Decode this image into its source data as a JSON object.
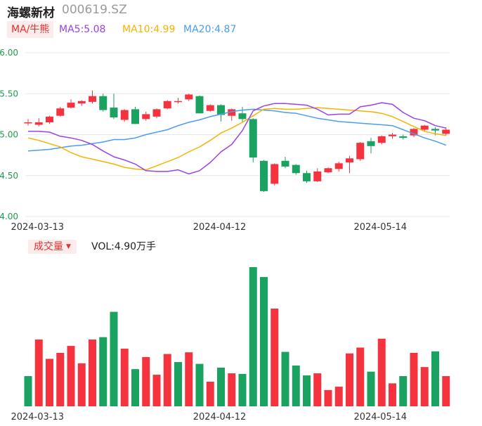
{
  "header": {
    "name": "海螺新材",
    "code": "000619.SZ"
  },
  "ma_legend": {
    "tab_label": "MA/牛熊",
    "ma5": "MA5:5.08",
    "ma10": "MA10:4.99",
    "ma20": "MA20:4.87"
  },
  "volume_legend": {
    "tab_label": "成交量",
    "value": "VOL:4.90万手"
  },
  "colors": {
    "up": "#f5333f",
    "down": "#1aa260",
    "ma5": "#9b41e8",
    "ma10": "#f4b400",
    "ma20": "#4a9df0",
    "grid": "#e8e8e8",
    "axis_label": "#1e9b4e"
  },
  "chart_data": [
    {
      "type": "candlestick",
      "title": "",
      "y_ticks": [
        "6.00",
        "5.50",
        "5.00",
        "4.50",
        "4.00"
      ],
      "ylim": [
        4.0,
        6.0
      ],
      "x_tick_labels": [
        {
          "index": 1,
          "label": "2024-03-13"
        },
        {
          "index": 18,
          "label": "2024-04-12"
        },
        {
          "index": 33,
          "label": "2024-05-14"
        }
      ],
      "candles": [
        {
          "o": 5.15,
          "c": 5.15,
          "h": 5.19,
          "l": 5.11
        },
        {
          "o": 5.12,
          "c": 5.15,
          "h": 5.2,
          "l": 5.1
        },
        {
          "o": 5.15,
          "c": 5.22,
          "h": 5.23,
          "l": 5.13
        },
        {
          "o": 5.23,
          "c": 5.32,
          "h": 5.34,
          "l": 5.22
        },
        {
          "o": 5.33,
          "c": 5.39,
          "h": 5.43,
          "l": 5.32
        },
        {
          "o": 5.38,
          "c": 5.41,
          "h": 5.42,
          "l": 5.35
        },
        {
          "o": 5.4,
          "c": 5.47,
          "h": 5.54,
          "l": 5.38
        },
        {
          "o": 5.47,
          "c": 5.3,
          "h": 5.5,
          "l": 5.28
        },
        {
          "o": 5.33,
          "c": 5.21,
          "h": 5.5,
          "l": 5.19
        },
        {
          "o": 5.18,
          "c": 5.3,
          "h": 5.31,
          "l": 5.16
        },
        {
          "o": 5.31,
          "c": 5.13,
          "h": 5.34,
          "l": 5.13
        },
        {
          "o": 5.19,
          "c": 5.25,
          "h": 5.28,
          "l": 5.17
        },
        {
          "o": 5.22,
          "c": 5.31,
          "h": 5.32,
          "l": 5.2
        },
        {
          "o": 5.32,
          "c": 5.41,
          "h": 5.42,
          "l": 5.31
        },
        {
          "o": 5.4,
          "c": 5.41,
          "h": 5.45,
          "l": 5.38
        },
        {
          "o": 5.43,
          "c": 5.49,
          "h": 5.5,
          "l": 5.41
        },
        {
          "o": 5.47,
          "c": 5.26,
          "h": 5.48,
          "l": 5.26
        },
        {
          "o": 5.29,
          "c": 5.36,
          "h": 5.37,
          "l": 5.28
        },
        {
          "o": 5.36,
          "c": 5.24,
          "h": 5.37,
          "l": 5.16
        },
        {
          "o": 5.23,
          "c": 5.31,
          "h": 5.32,
          "l": 5.17
        },
        {
          "o": 5.26,
          "c": 5.19,
          "h": 5.34,
          "l": 5.15
        },
        {
          "o": 5.19,
          "c": 4.72,
          "h": 5.2,
          "l": 4.66
        },
        {
          "o": 4.68,
          "c": 4.31,
          "h": 4.69,
          "l": 4.3
        },
        {
          "o": 4.4,
          "c": 4.64,
          "h": 4.65,
          "l": 4.38
        },
        {
          "o": 4.68,
          "c": 4.61,
          "h": 4.73,
          "l": 4.59
        },
        {
          "o": 4.63,
          "c": 4.53,
          "h": 4.64,
          "l": 4.51
        },
        {
          "o": 4.53,
          "c": 4.43,
          "h": 4.56,
          "l": 4.41
        },
        {
          "o": 4.43,
          "c": 4.55,
          "h": 4.59,
          "l": 4.42
        },
        {
          "o": 4.54,
          "c": 4.59,
          "h": 4.6,
          "l": 4.53
        },
        {
          "o": 4.58,
          "c": 4.65,
          "h": 4.67,
          "l": 4.55
        },
        {
          "o": 4.66,
          "c": 4.71,
          "h": 4.74,
          "l": 4.53
        },
        {
          "o": 4.7,
          "c": 4.9,
          "h": 4.91,
          "l": 4.68
        },
        {
          "o": 4.92,
          "c": 4.86,
          "h": 4.96,
          "l": 4.77
        },
        {
          "o": 4.9,
          "c": 4.98,
          "h": 4.99,
          "l": 4.88
        },
        {
          "o": 4.98,
          "c": 5.0,
          "h": 5.02,
          "l": 4.95
        },
        {
          "o": 4.98,
          "c": 4.96,
          "h": 5.0,
          "l": 4.94
        },
        {
          "o": 4.99,
          "c": 5.07,
          "h": 5.08,
          "l": 4.97
        },
        {
          "o": 5.06,
          "c": 5.11,
          "h": 5.12,
          "l": 5.04
        },
        {
          "o": 5.07,
          "c": 5.05,
          "h": 5.09,
          "l": 4.99
        },
        {
          "o": 5.01,
          "c": 5.06,
          "h": 5.09,
          "l": 4.99
        }
      ],
      "ma5": [
        5.04,
        5.04,
        5.03,
        4.98,
        4.96,
        4.93,
        4.88,
        4.8,
        4.73,
        4.69,
        4.64,
        4.56,
        4.55,
        4.55,
        4.57,
        4.52,
        4.56,
        4.66,
        4.79,
        4.88,
        5.05,
        5.29,
        5.35,
        5.38,
        5.38,
        5.37,
        5.36,
        5.31,
        5.24,
        5.25,
        5.25,
        5.34,
        5.36,
        5.39,
        5.37,
        5.27,
        5.2,
        5.17,
        5.11,
        5.08
      ],
      "ma10": [
        4.96,
        4.93,
        4.89,
        4.85,
        4.78,
        4.73,
        4.7,
        4.67,
        4.64,
        4.6,
        4.58,
        4.57,
        4.62,
        4.67,
        4.72,
        4.79,
        4.85,
        4.93,
        5.02,
        5.08,
        5.15,
        5.23,
        5.31,
        5.32,
        5.31,
        5.31,
        5.32,
        5.33,
        5.32,
        5.31,
        5.3,
        5.29,
        5.28,
        5.26,
        5.22,
        5.16,
        5.1,
        5.04,
        5.01,
        4.99
      ],
      "ma20": [
        4.8,
        4.81,
        4.82,
        4.84,
        4.86,
        4.87,
        4.89,
        4.91,
        4.94,
        4.94,
        4.96,
        5.0,
        5.03,
        5.06,
        5.11,
        5.15,
        5.18,
        5.22,
        5.25,
        5.28,
        5.3,
        5.31,
        5.3,
        5.29,
        5.27,
        5.26,
        5.23,
        5.2,
        5.18,
        5.16,
        5.15,
        5.14,
        5.13,
        5.12,
        5.11,
        5.06,
        5.01,
        4.96,
        4.92,
        4.87
      ]
    },
    {
      "type": "bar",
      "title": "",
      "x_tick_labels": [
        {
          "index": 1,
          "label": "2024-03-13"
        },
        {
          "index": 18,
          "label": "2024-04-12"
        },
        {
          "index": 33,
          "label": "2024-05-14"
        }
      ],
      "values": [
        2.17,
        4.8,
        3.41,
        3.84,
        4.34,
        3.09,
        4.8,
        4.97,
        6.79,
        4.14,
        2.67,
        3.54,
        2.27,
        3.76,
        3.18,
        3.88,
        3.05,
        1.77,
        2.78,
        2.37,
        2.33,
        10.0,
        9.29,
        7.02,
        3.91,
        2.93,
        2.22,
        2.37,
        1.17,
        1.41,
        3.8,
        4.22,
        2.49,
        4.86,
        1.65,
        2.17,
        3.84,
        2.82,
        3.95,
        2.17
      ],
      "directions": [
        "down",
        "up",
        "up",
        "up",
        "up",
        "up",
        "up",
        "down",
        "down",
        "up",
        "down",
        "up",
        "up",
        "up",
        "down",
        "up",
        "down",
        "up",
        "down",
        "up",
        "down",
        "down",
        "down",
        "up",
        "down",
        "down",
        "down",
        "up",
        "up",
        "up",
        "up",
        "up",
        "down",
        "up",
        "up",
        "down",
        "up",
        "up",
        "down",
        "up"
      ],
      "ylim": [
        0,
        10
      ]
    }
  ]
}
